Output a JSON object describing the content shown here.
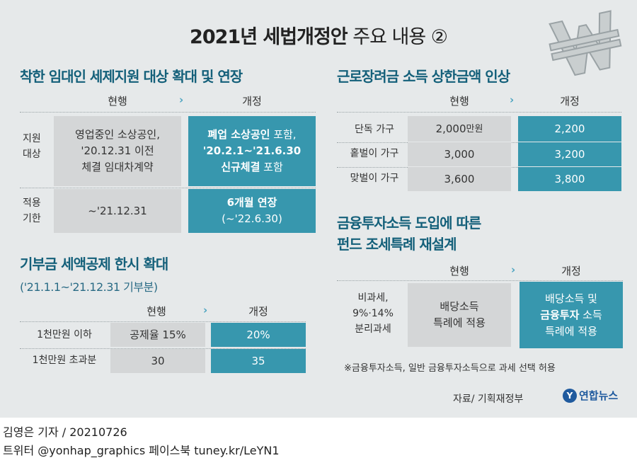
{
  "title": {
    "bold": "2021년 세법개정안",
    "rest": " 주요 내용 ②"
  },
  "s1": {
    "title": "착한 임대인 세제지원 대상 확대 및 연장",
    "head_current": "현행",
    "head_new": "개정",
    "row1_label": [
      "지원",
      "대상"
    ],
    "row1_current": [
      "영업중인 소상공인,",
      "'20.12.31 이전",
      "체결 임대차계약"
    ],
    "row1_new": [
      {
        "b": "폐업 소상공인",
        "t": " 포함,"
      },
      {
        "b": "'20.2.1~'21.6.30",
        "t": ""
      },
      {
        "b": "신규체결",
        "t": " 포함"
      }
    ],
    "row2_label": [
      "적용",
      "기한"
    ],
    "row2_current": "~'21.12.31",
    "row2_new_bold": "6개월 연장",
    "row2_new_sub": "(~'22.6.30)"
  },
  "s2": {
    "title": "근로장려금 소득 상한금액 인상",
    "head_current": "현행",
    "head_new": "개정",
    "rows": [
      {
        "label": "단독 가구",
        "current_num": "2,000",
        "current_unit": "만원",
        "new": "2,200"
      },
      {
        "label": "홑벌이 가구",
        "current_num": "3,000",
        "current_unit": "",
        "new": "3,200"
      },
      {
        "label": "맞벌이 가구",
        "current_num": "3,600",
        "current_unit": "",
        "new": "3,800"
      }
    ]
  },
  "s3": {
    "title": "기부금 세액공제 한시 확대",
    "subtitle": "('21.1.1~'21.12.31 기부분)",
    "head_current": "현행",
    "head_new": "개정",
    "rows": [
      {
        "label": "1천만원 이하",
        "current": "공제율 15%",
        "new": "20%"
      },
      {
        "label": "1천만원 초과분",
        "current": "30",
        "new": "35"
      }
    ]
  },
  "s4": {
    "title": [
      "금융투자소득 도입에 따른",
      "펀드 조세특례 재설계"
    ],
    "head_current": "현행",
    "head_new": "개정",
    "label": [
      "비과세,",
      "9%·14%",
      "분리과세"
    ],
    "current": [
      "배당소득",
      "특례에 적용"
    ],
    "new": [
      {
        "b": "",
        "t": "배당소득 및"
      },
      {
        "b": "금융투자",
        "t": " 소득"
      },
      {
        "b": "",
        "t": "특례에 적용"
      }
    ],
    "note": "※금융투자소득, 일반 금융투자소득으로 과세 선택 허용"
  },
  "source": "자료/ 기획재정부",
  "logo": {
    "mark": "Y",
    "text": "연합뉴스"
  },
  "footer": {
    "line1": "김영은 기자 / 20210726",
    "line2": "트위터 @yonhap_graphics  페이스북 tuney.kr/LeYN1"
  },
  "colors": {
    "accent": "#3797ae",
    "title": "#14607a",
    "current_bg": "#d4d6d7",
    "panel_bg": "#e6e9ea"
  }
}
